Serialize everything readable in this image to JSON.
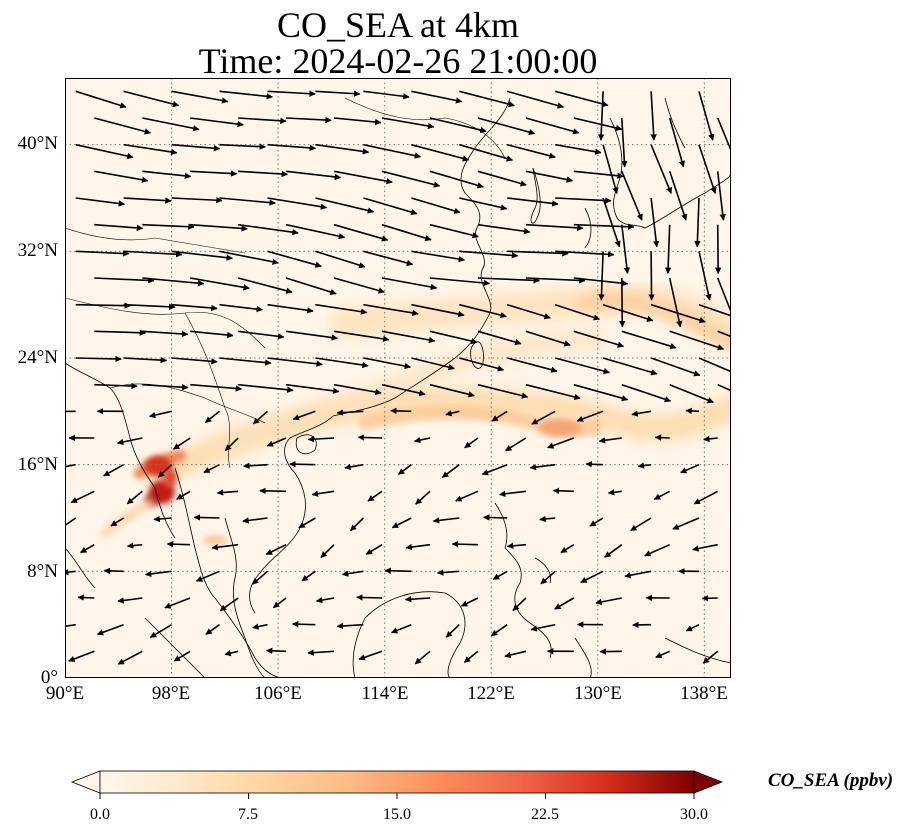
{
  "title_line1": "CO_SEA at 4km",
  "title_line2": "Time: 2024-02-26 21:00:00",
  "map": {
    "lon_range": [
      90,
      140
    ],
    "lat_range": [
      0,
      45
    ],
    "lat_ticks": [
      {
        "value": 0,
        "label": "0°"
      },
      {
        "value": 8,
        "label": "8°N"
      },
      {
        "value": 16,
        "label": "16°N"
      },
      {
        "value": 24,
        "label": "24°N"
      },
      {
        "value": 32,
        "label": "32°N"
      },
      {
        "value": 40,
        "label": "40°N"
      }
    ],
    "lon_ticks": [
      {
        "value": 90,
        "label": "90°E"
      },
      {
        "value": 98,
        "label": "98°E"
      },
      {
        "value": 106,
        "label": "106°E"
      },
      {
        "value": 114,
        "label": "114°E"
      },
      {
        "value": 122,
        "label": "122°E"
      },
      {
        "value": 130,
        "label": "130°E"
      },
      {
        "value": 138,
        "label": "138°E"
      }
    ],
    "gridlines": "dotted",
    "background_color": "#fff5e8"
  },
  "colorbar": {
    "label": "CO_SEA (ppbv)",
    "min": 0,
    "max": 30,
    "ticks": [
      "0.0",
      "7.5",
      "15.0",
      "22.5",
      "30.0"
    ],
    "colormap": "OrRd",
    "extend": "both"
  }
}
